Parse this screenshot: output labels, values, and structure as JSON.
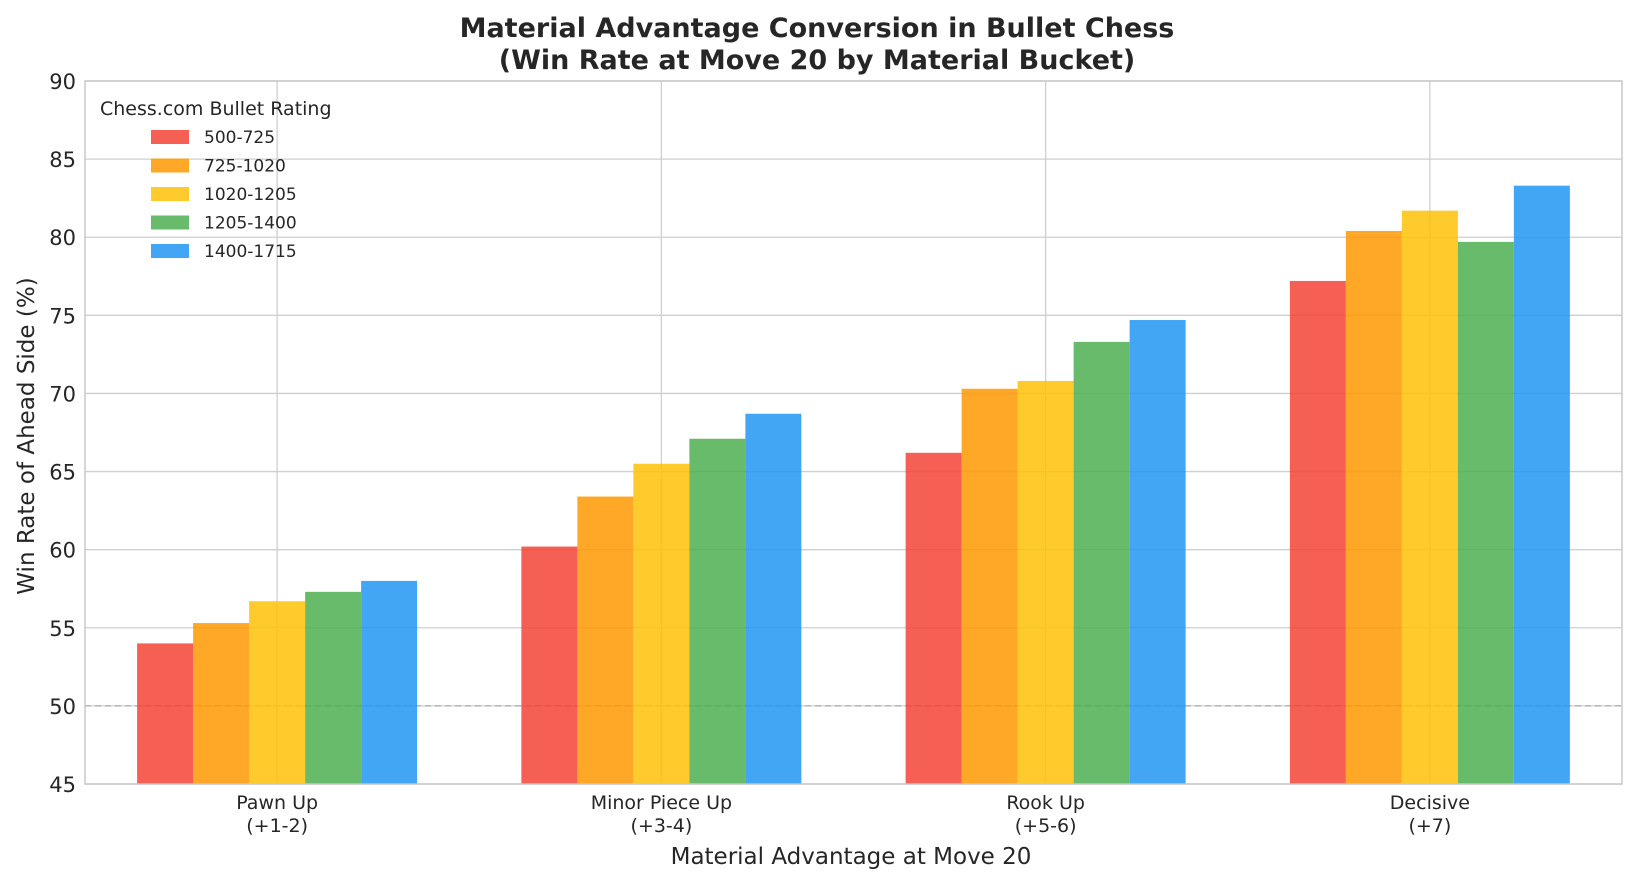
{
  "chart_data": {
    "type": "bar",
    "title": "Material Advantage Conversion in Bullet Chess",
    "subtitle": "(Win Rate at Move 20 by Material Bucket)",
    "xlabel": "Material Advantage at Move 20",
    "ylabel": "Win Rate of Ahead Side (%)",
    "ylim": [
      45,
      90
    ],
    "yticks": [
      45,
      50,
      55,
      60,
      65,
      70,
      75,
      80,
      85,
      90
    ],
    "reference_line": 50,
    "grid": true,
    "legend": {
      "title": "Chess.com Bullet Rating",
      "placement": "top-left"
    },
    "categories": [
      [
        "Pawn Up",
        "(+1-2)"
      ],
      [
        "Minor Piece Up",
        "(+3-4)"
      ],
      [
        "Rook Up",
        "(+5-6)"
      ],
      [
        "Decisive",
        "(+7)"
      ]
    ],
    "series": [
      {
        "name": "500-725",
        "color": "#F44336",
        "values": [
          54.0,
          60.2,
          66.2,
          77.2
        ]
      },
      {
        "name": "725-1020",
        "color": "#FF9800",
        "values": [
          55.3,
          63.4,
          70.3,
          80.4
        ]
      },
      {
        "name": "1020-1205",
        "color": "#FFC107",
        "values": [
          56.7,
          65.5,
          70.8,
          81.7
        ]
      },
      {
        "name": "1205-1400",
        "color": "#4CAF50",
        "values": [
          57.3,
          67.1,
          73.3,
          79.7
        ]
      },
      {
        "name": "1400-1715",
        "color": "#2196F3",
        "values": [
          58.0,
          68.7,
          74.7,
          83.3
        ]
      }
    ]
  }
}
